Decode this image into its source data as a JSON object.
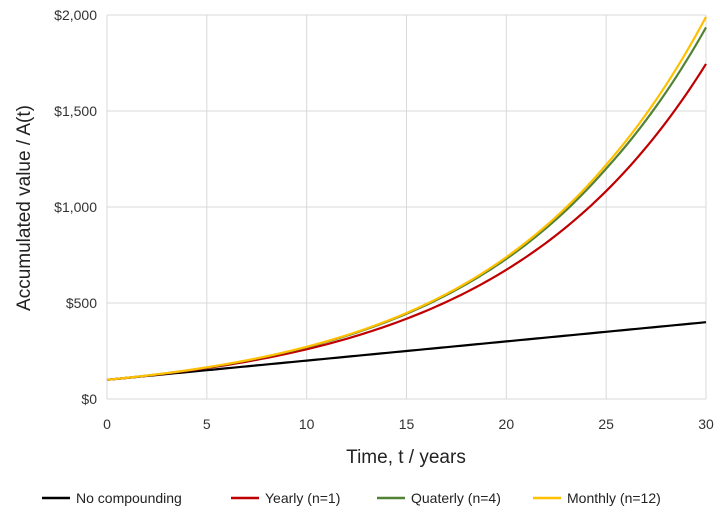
{
  "chart_data": {
    "type": "line",
    "xlabel": "Time, t / years",
    "ylabel": "Accumulated value / A(t)",
    "xlim": [
      0,
      30
    ],
    "ylim": [
      0,
      2000
    ],
    "x_ticks": [
      0,
      5,
      10,
      15,
      20,
      25,
      30
    ],
    "x_tick_labels": [
      "0",
      "5",
      "10",
      "15",
      "20",
      "25",
      "30"
    ],
    "y_ticks": [
      0,
      500,
      1000,
      1500,
      2000
    ],
    "y_tick_labels": [
      "$0",
      "$500",
      "$1,000",
      "$1,500",
      "$2,000"
    ],
    "grid": true,
    "legend_position": "bottom",
    "x": [
      0,
      5,
      10,
      15,
      20,
      25,
      30
    ],
    "series": [
      {
        "name": "No compounding",
        "color": "#000000",
        "values": [
          100,
          150,
          200,
          250,
          300,
          350,
          400
        ]
      },
      {
        "name": "Yearly (n=1)",
        "color": "#c00000",
        "values": [
          100,
          161,
          259,
          418,
          673,
          1083,
          1745
        ]
      },
      {
        "name": "Quaterly (n=4)",
        "color": "#538135",
        "values": [
          100,
          164,
          270,
          444,
          730,
          1200,
          1935
        ]
      },
      {
        "name": "Monthly (n=12)",
        "color": "#ffc000",
        "values": [
          100,
          165,
          272,
          448,
          739,
          1220,
          1990
        ]
      }
    ]
  }
}
